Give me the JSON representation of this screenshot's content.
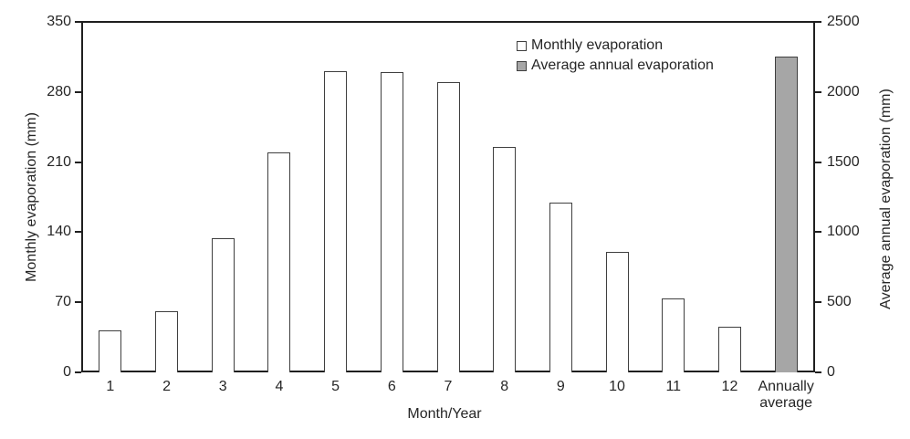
{
  "chart_data": {
    "type": "bar",
    "title": "",
    "xlabel": "Month/Year",
    "categories": [
      "1",
      "2",
      "3",
      "4",
      "5",
      "6",
      "7",
      "8",
      "9",
      "10",
      "11",
      "12",
      "Annually average"
    ],
    "series": [
      {
        "name": "Monthly evaporation",
        "axis": "left",
        "fill": "#ffffff",
        "values": [
          42,
          61,
          134,
          220,
          301,
          300,
          290,
          225,
          170,
          120,
          74,
          46,
          null
        ]
      },
      {
        "name": "Average annual evaporation",
        "axis": "right",
        "fill": "#a6a6a6",
        "values": [
          null,
          null,
          null,
          null,
          null,
          null,
          null,
          null,
          null,
          null,
          null,
          null,
          2250
        ]
      }
    ],
    "left_axis": {
      "label": "Monthly evaporation (mm)",
      "min": 0,
      "max": 350,
      "ticks": [
        0,
        70,
        140,
        210,
        280,
        350
      ]
    },
    "right_axis": {
      "label": "Average annual evaporation (mm)",
      "min": 0,
      "max": 2500,
      "ticks": [
        0,
        500,
        1000,
        1500,
        2000,
        2500
      ]
    },
    "legend": {
      "position": "top-center"
    },
    "grid": false,
    "colors": {
      "bar_outline": "#3f3f3f",
      "monthly_fill": "#ffffff",
      "annual_fill": "#a6a6a6",
      "axis_line": "#1f1f1f",
      "text": "#262626"
    }
  }
}
